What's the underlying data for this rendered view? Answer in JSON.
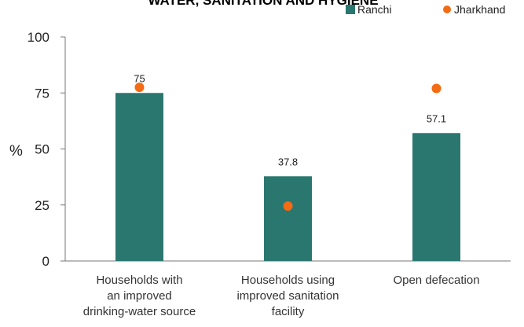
{
  "chart_data": {
    "type": "bar",
    "title": "WATER, SANITATION AND HYGIENE",
    "ylabel": "%",
    "ylim": [
      0,
      100
    ],
    "yticks": [
      0,
      25,
      50,
      75,
      100
    ],
    "categories": [
      [
        "Households with",
        "an improved",
        "drinking-water source"
      ],
      [
        "Households using",
        "improved sanitation",
        "facility"
      ],
      [
        "Open defecation"
      ]
    ],
    "series": [
      {
        "name": "Ranchi",
        "type": "bar",
        "color": "#2a7770",
        "values": [
          75,
          37.8,
          57.1
        ],
        "labels": [
          "75",
          "37.8",
          "57.1"
        ]
      },
      {
        "name": "Jharkhand",
        "type": "scatter",
        "color": "#f36b12",
        "values": [
          77.5,
          24.5,
          77
        ]
      }
    ],
    "legend_position": "top-right",
    "grid": false
  }
}
